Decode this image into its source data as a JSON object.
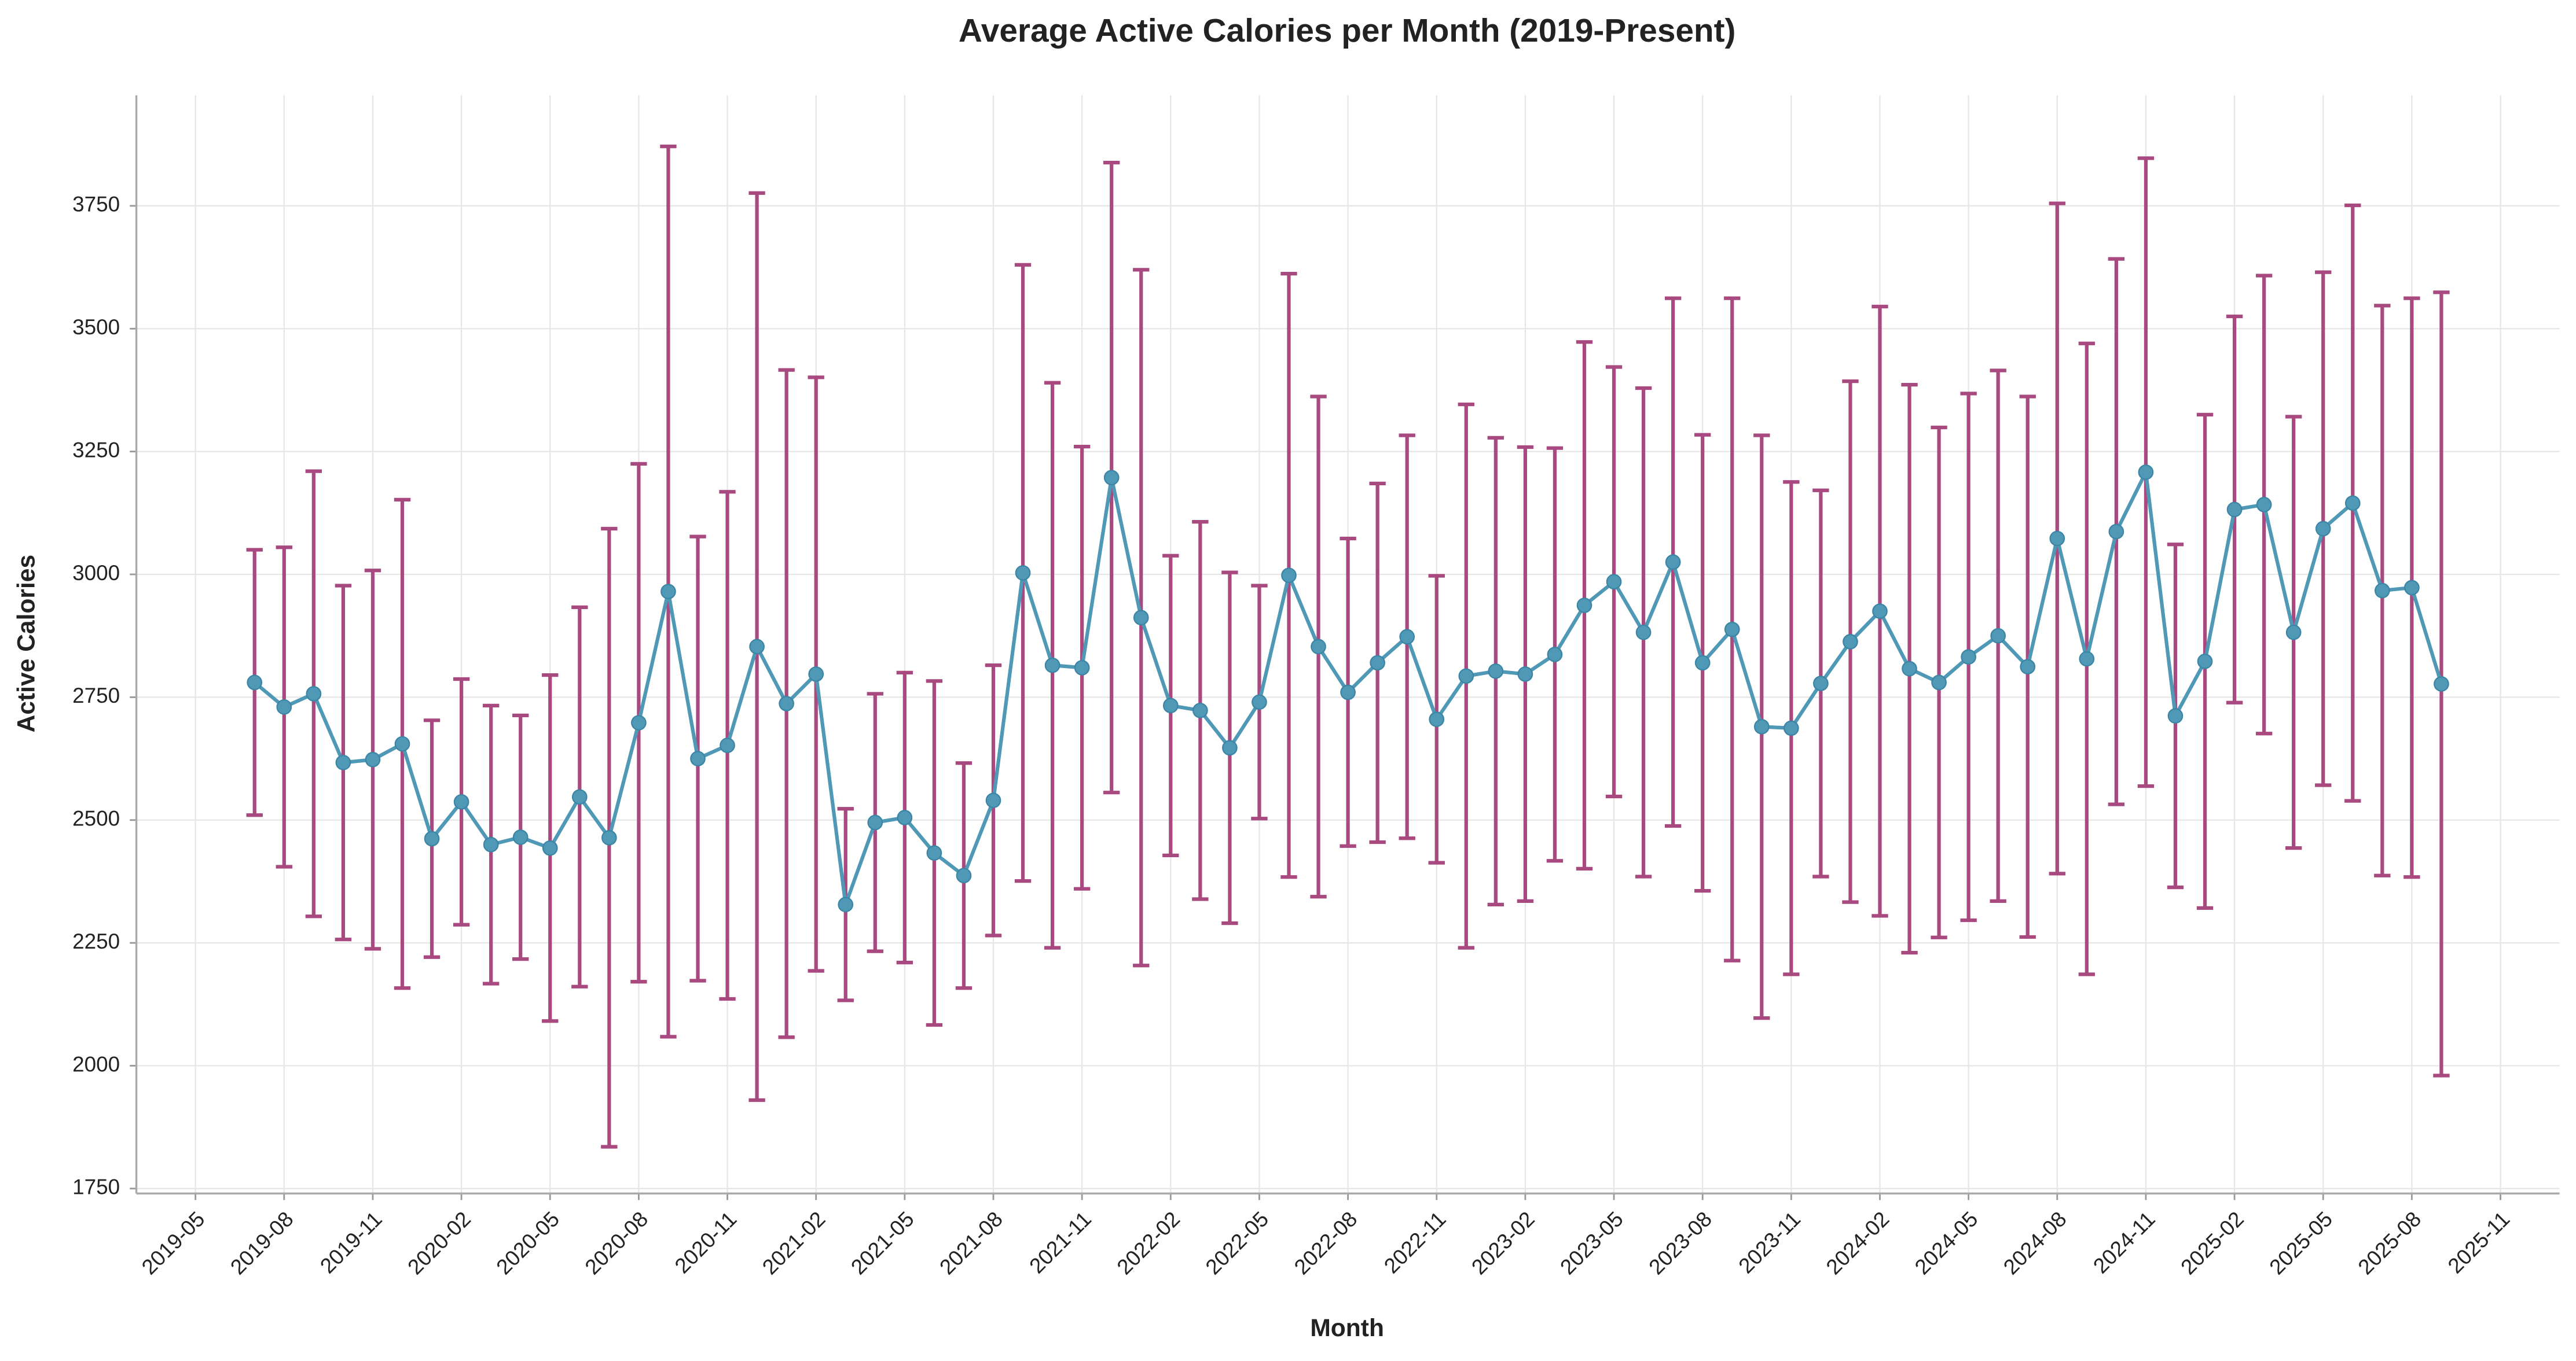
{
  "chart_data": {
    "type": "line",
    "title": "Average Active Calories per Month (2019-Present)",
    "x_label": "Month",
    "y_label": "Active Calories",
    "x": [
      "2019-07",
      "2019-08",
      "2019-09",
      "2019-10",
      "2019-11",
      "2019-12",
      "2020-01",
      "2020-02",
      "2020-03",
      "2020-04",
      "2020-05",
      "2020-06",
      "2020-07",
      "2020-08",
      "2020-09",
      "2020-10",
      "2020-11",
      "2020-12",
      "2021-01",
      "2021-02",
      "2021-03",
      "2021-04",
      "2021-05",
      "2021-06",
      "2021-07",
      "2021-08",
      "2021-09",
      "2021-10",
      "2021-11",
      "2021-12",
      "2022-01",
      "2022-02",
      "2022-03",
      "2022-04",
      "2022-05",
      "2022-06",
      "2022-07",
      "2022-08",
      "2022-09",
      "2022-10",
      "2022-11",
      "2022-12",
      "2023-01",
      "2023-02",
      "2023-03",
      "2023-04",
      "2023-05",
      "2023-06",
      "2023-07",
      "2023-08",
      "2023-09",
      "2023-10",
      "2023-11",
      "2023-12",
      "2024-01",
      "2024-02",
      "2024-03",
      "2024-04",
      "2024-05",
      "2024-06",
      "2024-07",
      "2024-08",
      "2024-09",
      "2024-10",
      "2024-11",
      "2024-12",
      "2025-01",
      "2025-02",
      "2025-03",
      "2025-04",
      "2025-05",
      "2025-06",
      "2025-07",
      "2025-08",
      "2025-09"
    ],
    "series": [
      {
        "color": "#4f98b6",
        "error_color": "#a84a80",
        "values": [
          2780,
          2730,
          2757,
          2617,
          2623,
          2655,
          2462,
          2537,
          2450,
          2465,
          2443,
          2547,
          2464,
          2698,
          2965,
          2625,
          2652,
          2853,
          2737,
          2797,
          2328,
          2495,
          2505,
          2433,
          2387,
          2540,
          3003,
          2815,
          2810,
          3197,
          2912,
          2733,
          2723,
          2647,
          2740,
          2998,
          2853,
          2760,
          2820,
          2873,
          2705,
          2793,
          2803,
          2797,
          2837,
          2937,
          2985,
          2882,
          3025,
          2820,
          2888,
          2690,
          2687,
          2778,
          2863,
          2925,
          2808,
          2780,
          2832,
          2875,
          2812,
          3073,
          2828,
          3087,
          3208,
          2712,
          2823,
          3132,
          3142,
          2882,
          3093,
          3145,
          2967,
          2973,
          2777
        ],
        "errors": [
          270,
          325,
          453,
          360,
          385,
          497,
          241,
          250,
          283,
          248,
          352,
          386,
          629,
          527,
          906,
          452,
          516,
          923,
          679,
          604,
          195,
          262,
          295,
          350,
          229,
          275,
          627,
          575,
          450,
          641,
          708,
          305,
          384,
          357,
          237,
          614,
          509,
          313,
          365,
          410,
          292,
          553,
          475,
          462,
          420,
          536,
          437,
          497,
          537,
          464,
          674,
          593,
          501,
          393,
          530,
          620,
          578,
          519,
          536,
          540,
          550,
          682,
          642,
          555,
          639,
          349,
          502,
          393,
          466,
          439,
          522,
          606,
          580,
          589,
          797
        ]
      }
    ],
    "xlim": [
      "2019-03",
      "2026-01"
    ],
    "xticks": [
      "2019-05",
      "2019-08",
      "2019-11",
      "2020-02",
      "2020-05",
      "2020-08",
      "2020-11",
      "2021-02",
      "2021-05",
      "2021-08",
      "2021-11",
      "2022-02",
      "2022-05",
      "2022-08",
      "2022-11",
      "2023-02",
      "2023-05",
      "2023-08",
      "2023-11",
      "2024-02",
      "2024-05",
      "2024-08",
      "2024-11",
      "2025-02",
      "2025-05",
      "2025-08",
      "2025-11"
    ],
    "ylim": [
      1740,
      3975
    ],
    "yticks": [
      1750,
      2000,
      2250,
      2500,
      2750,
      3000,
      3250,
      3500,
      3750
    ],
    "grid": true
  }
}
